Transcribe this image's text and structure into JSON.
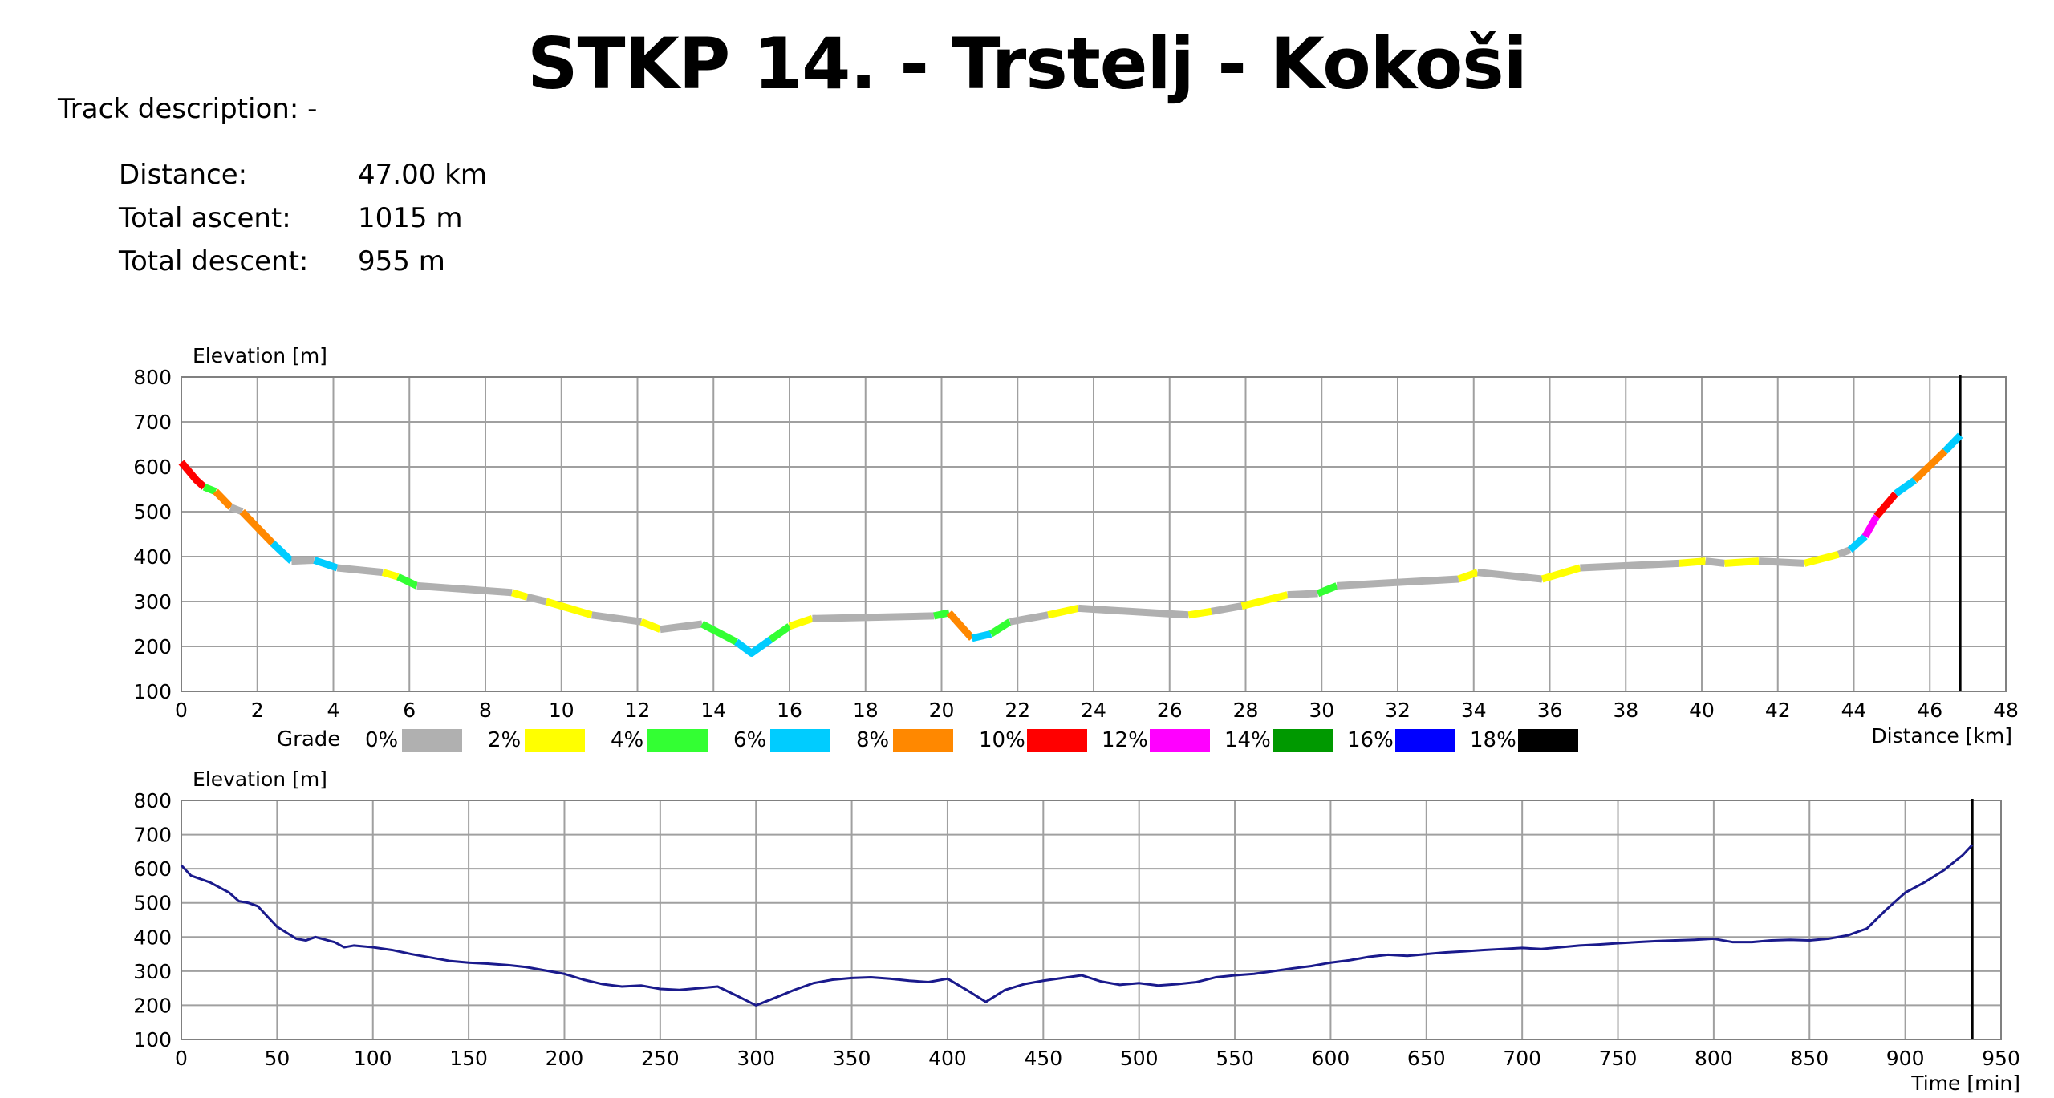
{
  "title": "STKP 14. - Trstelj - Kokoši",
  "track_description": "Track description: -",
  "stats": [
    {
      "label": "Distance:",
      "value": "47.00 km"
    },
    {
      "label": "Total ascent:",
      "value": "1015 m"
    },
    {
      "label": "Total descent:",
      "value": "955 m"
    }
  ],
  "grade_legend": {
    "title": "Grade",
    "items": [
      {
        "label": "0%",
        "color": "#b0b0b0"
      },
      {
        "label": "2%",
        "color": "#ffff00"
      },
      {
        "label": "4%",
        "color": "#33ff33"
      },
      {
        "label": "6%",
        "color": "#00ccff"
      },
      {
        "label": "8%",
        "color": "#ff8800"
      },
      {
        "label": "10%",
        "color": "#ff0000"
      },
      {
        "label": "12%",
        "color": "#ff00ff"
      },
      {
        "label": "14%",
        "color": "#009900"
      },
      {
        "label": "16%",
        "color": "#0000ff"
      },
      {
        "label": "18%",
        "color": "#000000"
      }
    ]
  },
  "chart_data": [
    {
      "type": "line",
      "ylabel": "Elevation [m]",
      "xlabel": "Distance [km]",
      "xlim": [
        0,
        48
      ],
      "ylim": [
        100,
        800
      ],
      "xticks": [
        0,
        2,
        4,
        6,
        8,
        10,
        12,
        14,
        16,
        18,
        20,
        22,
        24,
        26,
        28,
        30,
        32,
        34,
        36,
        38,
        40,
        42,
        44,
        46,
        48
      ],
      "yticks": [
        100,
        200,
        300,
        400,
        500,
        600,
        700,
        800
      ],
      "marker_x": 46.8,
      "grid": true,
      "colored_by": "grade",
      "segments": [
        {
          "x": [
            0,
            0.4,
            0.6
          ],
          "y": [
            610,
            570,
            555
          ],
          "color": "#ff0000"
        },
        {
          "x": [
            0.6,
            0.9
          ],
          "y": [
            555,
            545
          ],
          "color": "#33ff33"
        },
        {
          "x": [
            0.9,
            1.3
          ],
          "y": [
            545,
            510
          ],
          "color": "#ff8800"
        },
        {
          "x": [
            1.3,
            1.6
          ],
          "y": [
            510,
            500
          ],
          "color": "#b0b0b0"
        },
        {
          "x": [
            1.6,
            2.4
          ],
          "y": [
            500,
            430
          ],
          "color": "#ff8800"
        },
        {
          "x": [
            2.4,
            2.9
          ],
          "y": [
            430,
            390
          ],
          "color": "#00ccff"
        },
        {
          "x": [
            2.9,
            3.5
          ],
          "y": [
            390,
            392
          ],
          "color": "#b0b0b0"
        },
        {
          "x": [
            3.5,
            4.1
          ],
          "y": [
            392,
            375
          ],
          "color": "#00ccff"
        },
        {
          "x": [
            4.1,
            5.3
          ],
          "y": [
            375,
            365
          ],
          "color": "#b0b0b0"
        },
        {
          "x": [
            5.3,
            5.7
          ],
          "y": [
            365,
            355
          ],
          "color": "#ffff00"
        },
        {
          "x": [
            5.7,
            6.2
          ],
          "y": [
            355,
            335
          ],
          "color": "#33ff33"
        },
        {
          "x": [
            6.2,
            8.7
          ],
          "y": [
            335,
            320
          ],
          "color": "#b0b0b0"
        },
        {
          "x": [
            8.7,
            9.1
          ],
          "y": [
            320,
            310
          ],
          "color": "#ffff00"
        },
        {
          "x": [
            9.1,
            9.6
          ],
          "y": [
            310,
            300
          ],
          "color": "#b0b0b0"
        },
        {
          "x": [
            9.6,
            10.8
          ],
          "y": [
            300,
            270
          ],
          "color": "#ffff00"
        },
        {
          "x": [
            10.8,
            12.1
          ],
          "y": [
            270,
            255
          ],
          "color": "#b0b0b0"
        },
        {
          "x": [
            12.1,
            12.6
          ],
          "y": [
            255,
            238
          ],
          "color": "#ffff00"
        },
        {
          "x": [
            12.6,
            13.7
          ],
          "y": [
            238,
            250
          ],
          "color": "#b0b0b0"
        },
        {
          "x": [
            13.7,
            14.6
          ],
          "y": [
            250,
            210
          ],
          "color": "#33ff33"
        },
        {
          "x": [
            14.6,
            15.0,
            15.5
          ],
          "y": [
            210,
            185,
            215
          ],
          "color": "#00ccff"
        },
        {
          "x": [
            15.5,
            16.0
          ],
          "y": [
            215,
            245
          ],
          "color": "#33ff33"
        },
        {
          "x": [
            16.0,
            16.6
          ],
          "y": [
            245,
            262
          ],
          "color": "#ffff00"
        },
        {
          "x": [
            16.6,
            19.8
          ],
          "y": [
            262,
            268
          ],
          "color": "#b0b0b0"
        },
        {
          "x": [
            19.8,
            20.2
          ],
          "y": [
            268,
            275
          ],
          "color": "#33ff33"
        },
        {
          "x": [
            20.2,
            20.8
          ],
          "y": [
            275,
            218
          ],
          "color": "#ff8800"
        },
        {
          "x": [
            20.8,
            21.3
          ],
          "y": [
            218,
            228
          ],
          "color": "#00ccff"
        },
        {
          "x": [
            21.3,
            21.8
          ],
          "y": [
            228,
            255
          ],
          "color": "#33ff33"
        },
        {
          "x": [
            21.8,
            22.8
          ],
          "y": [
            255,
            270
          ],
          "color": "#b0b0b0"
        },
        {
          "x": [
            22.8,
            23.6
          ],
          "y": [
            270,
            285
          ],
          "color": "#ffff00"
        },
        {
          "x": [
            23.6,
            26.5
          ],
          "y": [
            285,
            270
          ],
          "color": "#b0b0b0"
        },
        {
          "x": [
            26.5,
            27.1
          ],
          "y": [
            270,
            278
          ],
          "color": "#ffff00"
        },
        {
          "x": [
            27.1,
            27.9
          ],
          "y": [
            278,
            290
          ],
          "color": "#b0b0b0"
        },
        {
          "x": [
            27.9,
            29.1
          ],
          "y": [
            290,
            315
          ],
          "color": "#ffff00"
        },
        {
          "x": [
            29.1,
            29.9
          ],
          "y": [
            315,
            318
          ],
          "color": "#b0b0b0"
        },
        {
          "x": [
            29.9,
            30.4
          ],
          "y": [
            318,
            335
          ],
          "color": "#33ff33"
        },
        {
          "x": [
            30.4,
            33.6
          ],
          "y": [
            335,
            350
          ],
          "color": "#b0b0b0"
        },
        {
          "x": [
            33.6,
            34.1
          ],
          "y": [
            350,
            365
          ],
          "color": "#ffff00"
        },
        {
          "x": [
            34.1,
            35.8
          ],
          "y": [
            365,
            350
          ],
          "color": "#b0b0b0"
        },
        {
          "x": [
            35.8,
            36.8
          ],
          "y": [
            350,
            375
          ],
          "color": "#ffff00"
        },
        {
          "x": [
            36.8,
            39.4
          ],
          "y": [
            375,
            385
          ],
          "color": "#b0b0b0"
        },
        {
          "x": [
            39.4,
            40.1
          ],
          "y": [
            385,
            390
          ],
          "color": "#ffff00"
        },
        {
          "x": [
            40.1,
            40.6
          ],
          "y": [
            390,
            385
          ],
          "color": "#b0b0b0"
        },
        {
          "x": [
            40.6,
            41.5
          ],
          "y": [
            385,
            390
          ],
          "color": "#ffff00"
        },
        {
          "x": [
            41.5,
            42.7
          ],
          "y": [
            390,
            385
          ],
          "color": "#b0b0b0"
        },
        {
          "x": [
            42.7,
            43.6
          ],
          "y": [
            385,
            405
          ],
          "color": "#ffff00"
        },
        {
          "x": [
            43.6,
            43.9
          ],
          "y": [
            405,
            415
          ],
          "color": "#b0b0b0"
        },
        {
          "x": [
            43.9,
            44.3
          ],
          "y": [
            415,
            445
          ],
          "color": "#00ccff"
        },
        {
          "x": [
            44.3,
            44.6
          ],
          "y": [
            445,
            490
          ],
          "color": "#ff00ff"
        },
        {
          "x": [
            44.6,
            45.1
          ],
          "y": [
            490,
            540
          ],
          "color": "#ff0000"
        },
        {
          "x": [
            45.1,
            45.6
          ],
          "y": [
            540,
            570
          ],
          "color": "#00ccff"
        },
        {
          "x": [
            45.6,
            46.4
          ],
          "y": [
            570,
            635
          ],
          "color": "#ff8800"
        },
        {
          "x": [
            46.4,
            46.8
          ],
          "y": [
            635,
            670
          ],
          "color": "#00ccff"
        }
      ]
    },
    {
      "type": "line",
      "ylabel": "Elevation [m]",
      "xlabel": "Time [min]",
      "xlim": [
        0,
        950
      ],
      "ylim": [
        100,
        800
      ],
      "xticks": [
        0,
        50,
        100,
        150,
        200,
        250,
        300,
        350,
        400,
        450,
        500,
        550,
        600,
        650,
        700,
        750,
        800,
        850,
        900,
        950
      ],
      "yticks": [
        100,
        200,
        300,
        400,
        500,
        600,
        700,
        800
      ],
      "marker_x": 935,
      "grid": true,
      "color": "#1a1a8c",
      "x": [
        0,
        5,
        15,
        25,
        30,
        35,
        40,
        50,
        60,
        65,
        70,
        80,
        85,
        90,
        100,
        110,
        120,
        130,
        140,
        150,
        160,
        170,
        180,
        190,
        200,
        210,
        220,
        230,
        240,
        250,
        260,
        270,
        280,
        290,
        300,
        310,
        320,
        330,
        340,
        350,
        360,
        370,
        380,
        390,
        400,
        410,
        420,
        430,
        440,
        450,
        460,
        470,
        480,
        490,
        500,
        510,
        520,
        530,
        540,
        550,
        560,
        570,
        580,
        590,
        600,
        610,
        620,
        630,
        640,
        650,
        660,
        670,
        680,
        690,
        700,
        710,
        720,
        730,
        740,
        750,
        760,
        770,
        780,
        790,
        800,
        810,
        820,
        830,
        840,
        850,
        860,
        870,
        880,
        890,
        900,
        910,
        920,
        930,
        935
      ],
      "y": [
        610,
        580,
        560,
        530,
        505,
        500,
        490,
        430,
        395,
        390,
        400,
        385,
        370,
        375,
        370,
        362,
        350,
        340,
        330,
        325,
        322,
        318,
        312,
        302,
        292,
        275,
        262,
        255,
        258,
        248,
        245,
        250,
        255,
        228,
        200,
        222,
        245,
        265,
        275,
        280,
        282,
        278,
        272,
        268,
        278,
        245,
        210,
        245,
        262,
        272,
        280,
        288,
        270,
        260,
        265,
        258,
        262,
        268,
        282,
        288,
        292,
        300,
        308,
        315,
        325,
        332,
        342,
        348,
        345,
        350,
        355,
        358,
        362,
        365,
        368,
        365,
        370,
        375,
        378,
        382,
        385,
        388,
        390,
        392,
        395,
        385,
        385,
        390,
        392,
        390,
        395,
        405,
        425,
        480,
        530,
        560,
        595,
        640,
        670
      ]
    }
  ]
}
